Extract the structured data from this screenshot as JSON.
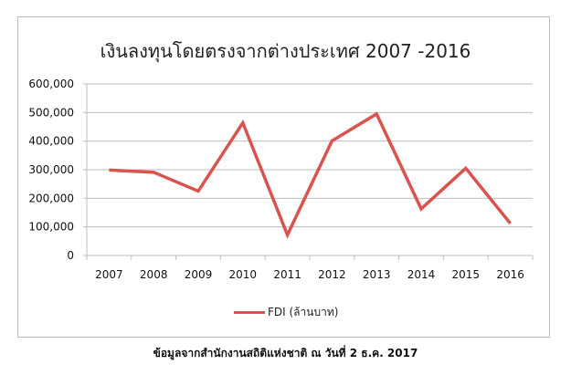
{
  "chart_data": {
    "type": "line",
    "title": "เงินลงทุนโดยตรงจากต่างประเทศ 2007 -2016",
    "categories": [
      "2007",
      "2008",
      "2009",
      "2010",
      "2011",
      "2012",
      "2013",
      "2014",
      "2015",
      "2016"
    ],
    "series": [
      {
        "name": "FDI (ล้านบาท)",
        "color": "#d9534f",
        "values": [
          299000,
          291000,
          225000,
          464000,
          72000,
          401000,
          495000,
          163000,
          305000,
          112000
        ]
      }
    ],
    "ylim": [
      0,
      600000
    ],
    "yticks": [
      "0",
      "100,000",
      "200,000",
      "300,000",
      "400,000",
      "500,000",
      "600,000"
    ],
    "grid": true,
    "legend": "bottom"
  },
  "source_note": "ข้อมูลจากสำนักงานสถิติแห่งชาติ ณ วันที่ 2 ธ.ค. 2017"
}
